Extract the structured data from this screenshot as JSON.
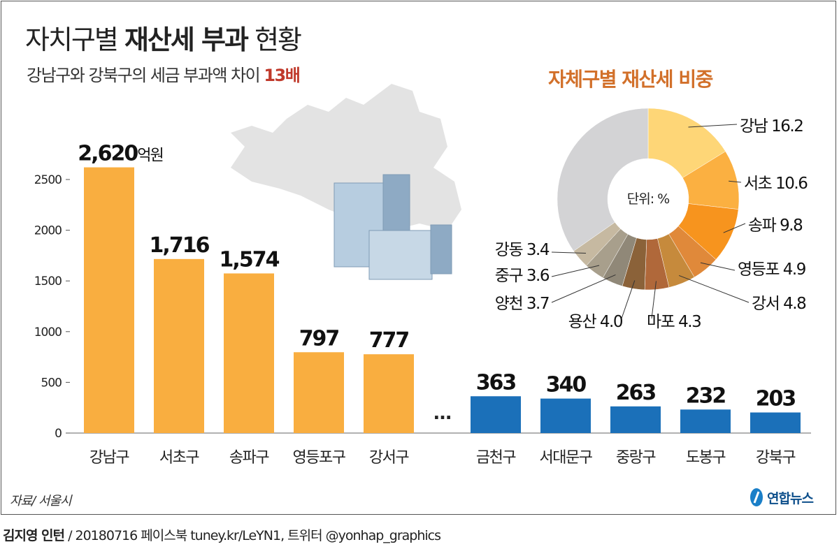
{
  "header": {
    "title_light_1": "자치구별",
    "title_bold": "재산세 부과",
    "title_light_2": "현황",
    "subtitle": "강남구와 강북구의 세금 부과액 차이",
    "subtitle_highlight": "13배"
  },
  "chart_data": [
    {
      "type": "bar",
      "title": "",
      "ylabel": "",
      "unit": "억원",
      "ylim": [
        0,
        2700
      ],
      "yticks": [
        0,
        500,
        1000,
        1500,
        2000,
        2500
      ],
      "gap_label": "…",
      "categories": [
        "강남구",
        "서초구",
        "송파구",
        "영등포구",
        "강서구",
        "금천구",
        "서대문구",
        "중랑구",
        "도봉구",
        "강북구"
      ],
      "values": [
        2620,
        1716,
        1574,
        797,
        777,
        363,
        340,
        263,
        232,
        203
      ],
      "value_labels": [
        "2,620",
        "1,716",
        "1,574",
        "797",
        "777",
        "363",
        "340",
        "263",
        "232",
        "203"
      ],
      "group": [
        "top",
        "top",
        "top",
        "top",
        "top",
        "bottom",
        "bottom",
        "bottom",
        "bottom",
        "bottom"
      ],
      "colors": {
        "top": "#f9ae40",
        "bottom": "#1b70b9"
      }
    },
    {
      "type": "pie",
      "title": "자체구별 재산세 비중",
      "center_label": "단위: %",
      "slices": [
        {
          "label": "강남",
          "value": 16.2,
          "color": "#fed677"
        },
        {
          "label": "서초",
          "value": 10.6,
          "color": "#fbb041"
        },
        {
          "label": "송파",
          "value": 9.8,
          "color": "#f7941e"
        },
        {
          "label": "영등포",
          "value": 4.9,
          "color": "#e0893a"
        },
        {
          "label": "강서",
          "value": 4.8,
          "color": "#c68a3c"
        },
        {
          "label": "마포",
          "value": 4.3,
          "color": "#b0683a"
        },
        {
          "label": "용산",
          "value": 4.0,
          "color": "#8b6239"
        },
        {
          "label": "양천",
          "value": 3.7,
          "color": "#908878"
        },
        {
          "label": "중구",
          "value": 3.6,
          "color": "#a89f8c"
        },
        {
          "label": "강동",
          "value": 3.4,
          "color": "#c6b9a1"
        },
        {
          "label": "",
          "value": 34.7,
          "color": "#d3d3d5"
        }
      ]
    }
  ],
  "footer": {
    "source": "자료/ 서울시",
    "logo": "연합뉴스",
    "credit_bold": "김지영 인턴",
    "credit": "/ 20180716 페이스북 tuney.kr/LeYN1, 트위터 @yonhap_graphics"
  }
}
